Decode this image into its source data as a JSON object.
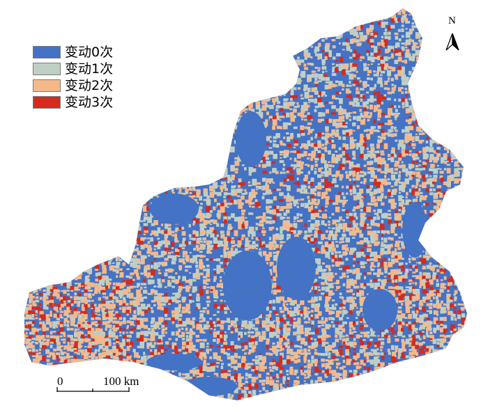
{
  "legend": {
    "items": [
      {
        "label": "变动0次",
        "color": "#4472c4"
      },
      {
        "label": "变动1次",
        "color": "#c0cfc4"
      },
      {
        "label": "变动2次",
        "color": "#f5b88a"
      },
      {
        "label": "变动3次",
        "color": "#d42a1f"
      }
    ]
  },
  "north_arrow": {
    "label": "N"
  },
  "scale_bar": {
    "start_label": "0",
    "end_label": "100 km"
  }
}
